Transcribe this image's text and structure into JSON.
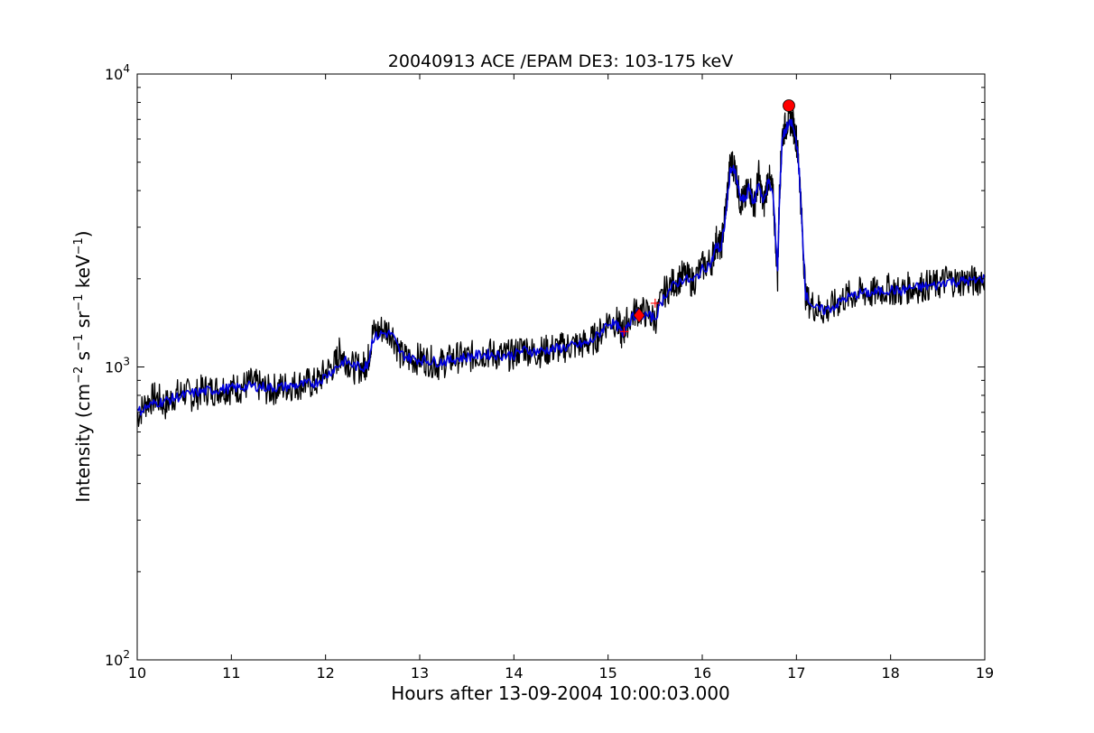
{
  "chart_data": {
    "type": "line",
    "title": "20040913 ACE /EPAM DE3: 103-175 keV",
    "xlabel": "Hours after 13-09-2004 10:00:03.000",
    "ylabel": {
      "prefix": "Intensity (cm",
      "exp1": "−2",
      "mid1": " s",
      "exp2": "−1",
      "mid2": " sr",
      "exp3": "−1",
      "mid3": " keV",
      "exp4": "−1",
      "suffix": ")"
    },
    "xlim": [
      10,
      19
    ],
    "ylim": [
      100,
      10000
    ],
    "yscale": "log",
    "x_ticks": [
      "10",
      "11",
      "12",
      "13",
      "14",
      "15",
      "16",
      "17",
      "18",
      "19"
    ],
    "y_ticks": [
      {
        "value": 100,
        "base": "10",
        "exp": "2"
      },
      {
        "value": 1000,
        "base": "10",
        "exp": "3"
      },
      {
        "value": 10000,
        "base": "10",
        "exp": "4"
      }
    ],
    "grid": false,
    "series": [
      {
        "role": "raw",
        "color": "#000000",
        "points": [
          [
            10.0,
            680
          ],
          [
            10.1,
            760
          ],
          [
            10.2,
            790
          ],
          [
            10.3,
            740
          ],
          [
            10.4,
            800
          ],
          [
            10.5,
            820
          ],
          [
            10.6,
            790
          ],
          [
            10.7,
            840
          ],
          [
            10.8,
            830
          ],
          [
            10.9,
            850
          ],
          [
            11.0,
            840
          ],
          [
            11.1,
            850
          ],
          [
            11.2,
            880
          ],
          [
            11.3,
            860
          ],
          [
            11.4,
            830
          ],
          [
            11.5,
            850
          ],
          [
            11.6,
            860
          ],
          [
            11.7,
            870
          ],
          [
            11.8,
            880
          ],
          [
            11.9,
            880
          ],
          [
            12.0,
            960
          ],
          [
            12.1,
            1020
          ],
          [
            12.15,
            1120
          ],
          [
            12.2,
            1080
          ],
          [
            12.3,
            990
          ],
          [
            12.4,
            1000
          ],
          [
            12.45,
            1050
          ],
          [
            12.5,
            1300
          ],
          [
            12.6,
            1350
          ],
          [
            12.7,
            1320
          ],
          [
            12.8,
            1090
          ],
          [
            12.9,
            1060
          ],
          [
            13.0,
            1070
          ],
          [
            13.1,
            1050
          ],
          [
            13.2,
            1020
          ],
          [
            13.3,
            1050
          ],
          [
            13.4,
            1080
          ],
          [
            13.5,
            1070
          ],
          [
            13.6,
            1100
          ],
          [
            13.7,
            1120
          ],
          [
            13.8,
            1100
          ],
          [
            13.9,
            1090
          ],
          [
            14.0,
            1100
          ],
          [
            14.1,
            1170
          ],
          [
            14.2,
            1120
          ],
          [
            14.3,
            1130
          ],
          [
            14.4,
            1150
          ],
          [
            14.5,
            1160
          ],
          [
            14.6,
            1180
          ],
          [
            14.7,
            1190
          ],
          [
            14.8,
            1210
          ],
          [
            14.9,
            1280
          ],
          [
            15.0,
            1450
          ],
          [
            15.1,
            1420
          ],
          [
            15.15,
            1280
          ],
          [
            15.2,
            1420
          ],
          [
            15.3,
            1560
          ],
          [
            15.4,
            1530
          ],
          [
            15.5,
            1450
          ],
          [
            15.6,
            1800
          ],
          [
            15.7,
            1950
          ],
          [
            15.8,
            2050
          ],
          [
            15.9,
            1950
          ],
          [
            16.0,
            2200
          ],
          [
            16.1,
            2300
          ],
          [
            16.15,
            2700
          ],
          [
            16.2,
            2550
          ],
          [
            16.25,
            3500
          ],
          [
            16.3,
            5000
          ],
          [
            16.35,
            4800
          ],
          [
            16.4,
            3700
          ],
          [
            16.45,
            3700
          ],
          [
            16.5,
            4200
          ],
          [
            16.55,
            3500
          ],
          [
            16.6,
            4500
          ],
          [
            16.65,
            3500
          ],
          [
            16.7,
            4500
          ],
          [
            16.75,
            3900
          ],
          [
            16.8,
            2050
          ],
          [
            16.82,
            4000
          ],
          [
            16.85,
            6200
          ],
          [
            16.9,
            6800
          ],
          [
            16.95,
            7000
          ],
          [
            17.0,
            6000
          ],
          [
            17.03,
            4700
          ],
          [
            17.06,
            3000
          ],
          [
            17.1,
            1700
          ],
          [
            17.2,
            1600
          ],
          [
            17.3,
            1550
          ],
          [
            17.4,
            1620
          ],
          [
            17.5,
            1720
          ],
          [
            17.6,
            1760
          ],
          [
            17.7,
            1800
          ],
          [
            17.8,
            1780
          ],
          [
            17.9,
            1820
          ],
          [
            18.0,
            1850
          ],
          [
            18.1,
            1800
          ],
          [
            18.2,
            1870
          ],
          [
            18.3,
            1870
          ],
          [
            18.4,
            1900
          ],
          [
            18.5,
            1900
          ],
          [
            18.6,
            2000
          ],
          [
            18.7,
            1950
          ],
          [
            18.8,
            1980
          ],
          [
            18.9,
            1950
          ],
          [
            19.0,
            2050
          ]
        ]
      },
      {
        "role": "smoothed",
        "color": "#0000dd",
        "points": [
          [
            10.0,
            700
          ],
          [
            10.1,
            730
          ],
          [
            10.2,
            755
          ],
          [
            10.3,
            765
          ],
          [
            10.4,
            785
          ],
          [
            10.5,
            800
          ],
          [
            10.6,
            815
          ],
          [
            10.7,
            825
          ],
          [
            10.8,
            832
          ],
          [
            10.9,
            840
          ],
          [
            11.0,
            845
          ],
          [
            11.1,
            852
          ],
          [
            11.2,
            860
          ],
          [
            11.3,
            858
          ],
          [
            11.4,
            850
          ],
          [
            11.5,
            852
          ],
          [
            11.6,
            858
          ],
          [
            11.7,
            866
          ],
          [
            11.8,
            874
          ],
          [
            11.9,
            884
          ],
          [
            12.0,
            930
          ],
          [
            12.1,
            990
          ],
          [
            12.2,
            1050
          ],
          [
            12.3,
            1010
          ],
          [
            12.4,
            995
          ],
          [
            12.45,
            1030
          ],
          [
            12.5,
            1250
          ],
          [
            12.6,
            1300
          ],
          [
            12.7,
            1300
          ],
          [
            12.8,
            1110
          ],
          [
            12.9,
            1070
          ],
          [
            13.0,
            1060
          ],
          [
            13.1,
            1050
          ],
          [
            13.2,
            1040
          ],
          [
            13.3,
            1050
          ],
          [
            13.4,
            1070
          ],
          [
            13.5,
            1080
          ],
          [
            13.6,
            1095
          ],
          [
            13.7,
            1105
          ],
          [
            13.8,
            1100
          ],
          [
            13.9,
            1095
          ],
          [
            14.0,
            1100
          ],
          [
            14.1,
            1140
          ],
          [
            14.2,
            1130
          ],
          [
            14.3,
            1135
          ],
          [
            14.4,
            1150
          ],
          [
            14.5,
            1160
          ],
          [
            14.6,
            1175
          ],
          [
            14.7,
            1190
          ],
          [
            14.8,
            1210
          ],
          [
            14.9,
            1290
          ],
          [
            15.0,
            1420
          ],
          [
            15.1,
            1380
          ],
          [
            15.15,
            1290
          ],
          [
            15.2,
            1400
          ],
          [
            15.3,
            1520
          ],
          [
            15.4,
            1500
          ],
          [
            15.5,
            1470
          ],
          [
            15.6,
            1760
          ],
          [
            15.7,
            1900
          ],
          [
            15.8,
            2000
          ],
          [
            15.9,
            1960
          ],
          [
            16.0,
            2150
          ],
          [
            16.1,
            2270
          ],
          [
            16.15,
            2600
          ],
          [
            16.2,
            2500
          ],
          [
            16.25,
            3300
          ],
          [
            16.3,
            4800
          ],
          [
            16.35,
            4600
          ],
          [
            16.4,
            3800
          ],
          [
            16.45,
            3700
          ],
          [
            16.5,
            4100
          ],
          [
            16.55,
            3600
          ],
          [
            16.6,
            4300
          ],
          [
            16.65,
            3600
          ],
          [
            16.7,
            4300
          ],
          [
            16.75,
            3900
          ],
          [
            16.8,
            2150
          ],
          [
            16.82,
            3800
          ],
          [
            16.85,
            6000
          ],
          [
            16.9,
            6600
          ],
          [
            16.95,
            6800
          ],
          [
            17.0,
            5900
          ],
          [
            17.03,
            4600
          ],
          [
            17.06,
            3000
          ],
          [
            17.1,
            1750
          ],
          [
            17.2,
            1580
          ],
          [
            17.3,
            1560
          ],
          [
            17.4,
            1610
          ],
          [
            17.5,
            1700
          ],
          [
            17.6,
            1750
          ],
          [
            17.7,
            1790
          ],
          [
            17.8,
            1785
          ],
          [
            17.9,
            1815
          ],
          [
            18.0,
            1840
          ],
          [
            18.1,
            1810
          ],
          [
            18.2,
            1860
          ],
          [
            18.3,
            1870
          ],
          [
            18.4,
            1890
          ],
          [
            18.5,
            1900
          ],
          [
            18.6,
            1970
          ],
          [
            18.7,
            1950
          ],
          [
            18.8,
            1970
          ],
          [
            18.9,
            1960
          ],
          [
            19.0,
            2020
          ]
        ]
      }
    ],
    "markers": [
      {
        "type": "circle",
        "x": 16.92,
        "y": 7800,
        "color": "#ff0000"
      },
      {
        "type": "diamond",
        "x": 15.33,
        "y": 1500,
        "color": "#ff0000"
      },
      {
        "type": "plus",
        "x": 15.17,
        "y": 1320,
        "color": "#ff0000"
      },
      {
        "type": "plus",
        "x": 15.5,
        "y": 1650,
        "color": "#ff0000"
      }
    ]
  }
}
